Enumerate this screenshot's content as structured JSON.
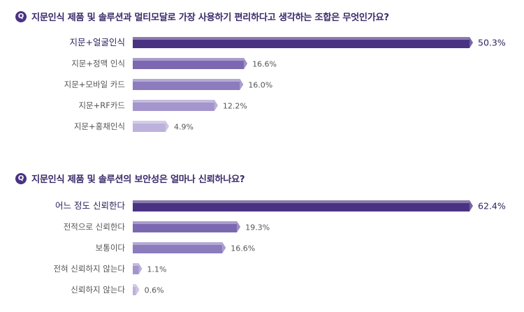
{
  "colors": {
    "badge": "#4a3283",
    "question_text": "#3a2a6a",
    "label_text": "#555555",
    "value_text": "#555555",
    "top_label_text": "#2e2260"
  },
  "chart_data": [
    {
      "type": "bar",
      "orientation": "horizontal",
      "badge": "Q",
      "title": "지문인식 제품 및 솔루션과 멀티모달로 가장 사용하기 편리하다고 생각하는 조합은 무엇인가요?",
      "categories": [
        "지문+얼굴인식",
        "지문+정맥 인식",
        "지문+모바일 카드",
        "지문+RF카드",
        "지문+홍채인식"
      ],
      "values": [
        50.3,
        16.6,
        16.0,
        12.2,
        4.9
      ],
      "value_labels": [
        "50.3%",
        "16.6%",
        "16.0%",
        "12.2%",
        "4.9%"
      ],
      "bar_colors": [
        "#4a3283",
        "#7b68b1",
        "#8c7bbd",
        "#a496cc",
        "#bdb2dc"
      ],
      "xlim": [
        0,
        50.3
      ]
    },
    {
      "type": "bar",
      "orientation": "horizontal",
      "badge": "Q",
      "title": "지문인식 제품 및 솔루션의 보안성은 얼마나 신뢰하나요?",
      "categories": [
        "어느 정도 신뢰한다",
        "전적으로 신뢰한다",
        "보통이다",
        "전혀 신뢰하지 않는다",
        "신뢰하지 않는다"
      ],
      "values": [
        62.4,
        19.3,
        16.6,
        1.1,
        0.6
      ],
      "value_labels": [
        "62.4%",
        "19.3%",
        "16.6%",
        "1.1%",
        "0.6%"
      ],
      "bar_colors": [
        "#4a3283",
        "#7b68b1",
        "#8c7bbd",
        "#a496cc",
        "#bdb2dc"
      ],
      "xlim": [
        0,
        62.4
      ]
    }
  ]
}
